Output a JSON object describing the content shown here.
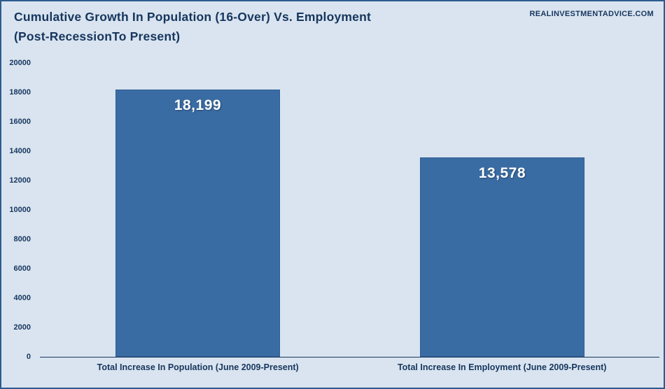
{
  "header": {
    "title_line1": "Cumulative Growth In Population (16-Over) Vs. Employment",
    "title_line2": "(Post-RecessionTo Present)",
    "watermark": "REALINVESTMENTADVICE.COM"
  },
  "chart_data": {
    "type": "bar",
    "title": "Cumulative Growth In Population (16-Over) Vs. Employment (Post-RecessionTo Present)",
    "categories": [
      "Total Increase In Population (June 2009-Present)",
      "Total Increase In Employment (June 2009-Present)"
    ],
    "values": [
      18199,
      13578
    ],
    "value_labels": [
      "18,199",
      "13,578"
    ],
    "xlabel": "",
    "ylabel": "",
    "ylim": [
      0,
      20000
    ],
    "ytick_step": 2000,
    "yticks": [
      0,
      2000,
      4000,
      6000,
      8000,
      10000,
      12000,
      14000,
      16000,
      18000,
      20000
    ],
    "grid": false,
    "legend": "none",
    "colors": {
      "background": "#d9e4f0",
      "frame_border": "#2e5b8e",
      "bar_fill": "#3a6ca4",
      "bar_border": "#305d92",
      "title_text": "#17365d",
      "axis_text": "#17365d",
      "data_label_text": "#ffffff"
    }
  }
}
